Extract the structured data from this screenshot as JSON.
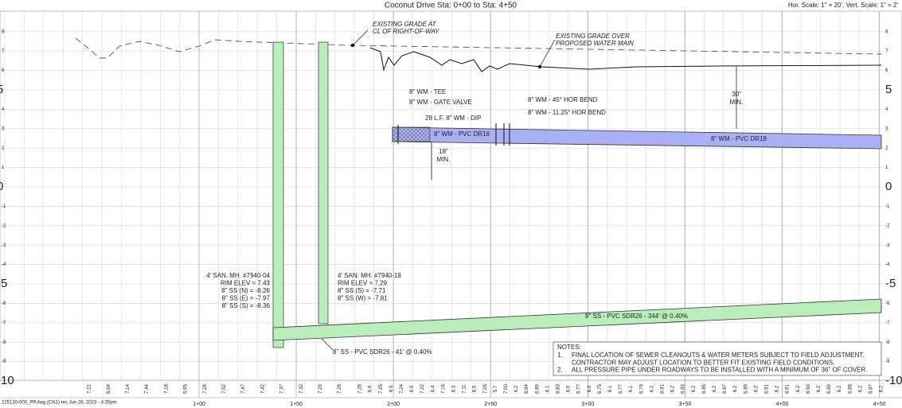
{
  "header": {
    "title": "Coconut Drive Sta: 0+00 to Sta: 4+50",
    "scale": "Hor. Scale: 1\" = 20', Vert. Scale: 1\" = 2'"
  },
  "elevation_axis": {
    "ticks": [
      8,
      7,
      6,
      5,
      4,
      3,
      2,
      1,
      0,
      -1,
      -2,
      -3,
      -4,
      -5,
      -6,
      -7,
      -8,
      -9,
      -10
    ]
  },
  "stations": [
    "1+00",
    "1+50",
    "2+00",
    "2+50",
    "3+00",
    "3+50",
    "4+00",
    "4+50"
  ],
  "profile_elevations": [
    "7.21",
    "6.54",
    "7.14",
    "7.44",
    "7.18",
    "6.95",
    "7.28",
    "7.52",
    "7.47",
    "7.42",
    "7.37",
    "7.32",
    "7.29",
    "7.28",
    "7.26",
    "6.9",
    "7.25",
    "6.5",
    "7.24",
    "6.9",
    "7.22",
    "6.4",
    "7.16",
    "6.3",
    "7.11",
    "6.5",
    "7.05",
    "5.7",
    "7.00",
    "6.2",
    "6.94",
    "6.89",
    "6.1",
    "6.83",
    "6.0",
    "6.77",
    "6.0",
    "6.75",
    "6.1",
    "6.77",
    "6.1",
    "6.79",
    "6.2",
    "6.81",
    "6.2",
    "6.83",
    "6.2",
    "6.85",
    "6.2",
    "6.87",
    "6.2",
    "6.89",
    "6.2",
    "6.91",
    "6.2",
    "6.91",
    "6.2",
    "6.90",
    "6.2",
    "6.89",
    "6.2",
    "6.88",
    "6.2",
    "6.87",
    "6.2"
  ],
  "annotations": {
    "grade_cl": [
      "EXISTING GRADE AT",
      "CL OF RIGHT-OF-WAY"
    ],
    "grade_wm": [
      "EXISTING GRADE OVER",
      "PROPOSED WATER MAIN"
    ],
    "tee": "8\" WM - TEE",
    "gate_valve": "8\" WM - GATE VALVE",
    "dip": "28 L.F.  8\" WM - DIP",
    "pvc_1": "8\" WM - PVC DR18",
    "pvc_2": "8\" WM - PVC DR18",
    "bend_45": "8\" WM - 45° HOR BEND",
    "bend_11": "8\" WM - 11.25° HOR BEND",
    "cover_30": [
      "30\"",
      "MIN."
    ],
    "sep_18": [
      "18\"",
      "MIN."
    ],
    "ss_main": "8\" SS - PVC SDR26  - 344' @ 0.40%",
    "ss_short": "8\" SS - PVC SDR26 - 41' @ 0.40%"
  },
  "manholes": [
    {
      "lines": [
        "4' SAN. MH. #7940-04",
        "RIM ELEV = 7.43",
        "8\" SS (N) = -8.26",
        "8\" SS (E) = -7.97",
        "8\" SS (S) = -8.36"
      ]
    },
    {
      "lines": [
        "4' SAN. MH. #7940-18",
        "RIM ELEV = 7.29",
        "8\" SS (S) = -7.71",
        "8\" SS (W) = -7.81"
      ]
    }
  ],
  "notes": {
    "title": "NOTES:",
    "items": [
      {
        "number": "1.",
        "lines": [
          "FINAL LOCATION OF SEWER CLEANOUTS & WATER METERS SUBJECT TO FIELD ADJUSTMENT.",
          "CONTRACTOR MAY ADJUST LOCATION TO BETTER FIT EXISTING FIELD CONDITIONS."
        ]
      },
      {
        "number": "2.",
        "lines": [
          "ALL PRESSURE PIPE UNDER ROADWAYS TO BE INSTALLED WITH A MINIMUM OF 36\" OF COVER."
        ]
      }
    ]
  },
  "footer": {
    "file": "225130-000_PP.dwg (CN1) rec Jun 28, 2023 - 4:35pm"
  }
}
